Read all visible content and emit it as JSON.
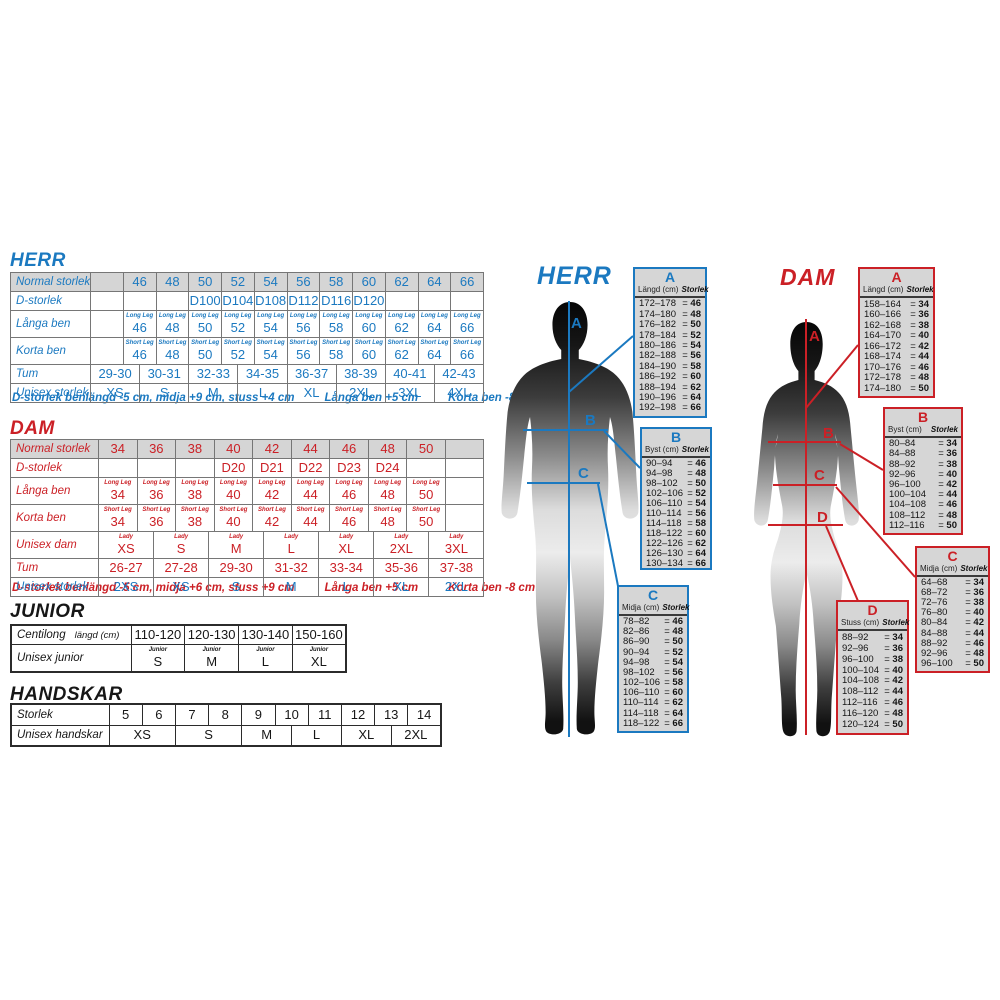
{
  "colors": {
    "blue": "#1b79c0",
    "red": "#cb2026",
    "black": "#161616",
    "header_bg": "#d5d5d5",
    "panel_bg": "#d6d6d6"
  },
  "sections": {
    "herr": {
      "title": "HERR",
      "rows": {
        "normal": {
          "label": "Normal storlek",
          "values": [
            "",
            "46",
            "48",
            "50",
            "52",
            "54",
            "56",
            "58",
            "60",
            "62",
            "64",
            "66"
          ]
        },
        "d": {
          "label": "D-storlek",
          "values": [
            "",
            "",
            "",
            "D100",
            "D104",
            "D108",
            "D112",
            "D116",
            "D120",
            "",
            "",
            ""
          ]
        },
        "langa": {
          "label": "Långa ben",
          "sub": "Long Leg",
          "values": [
            "",
            "46",
            "48",
            "50",
            "52",
            "54",
            "56",
            "58",
            "60",
            "62",
            "64",
            "66"
          ]
        },
        "korta": {
          "label": "Korta ben",
          "sub": "Short Leg",
          "values": [
            "",
            "46",
            "48",
            "50",
            "52",
            "54",
            "56",
            "58",
            "60",
            "62",
            "64",
            "66"
          ]
        },
        "tum": {
          "label": "Tum",
          "values": [
            "29-30",
            "30-31",
            "32-33",
            "34-35",
            "36-37",
            "38-39",
            "40-41",
            "42-43"
          ]
        },
        "unisex": {
          "label": "Unisex storlek",
          "values": [
            "XS",
            "S",
            "M",
            "L",
            "XL",
            "2XL",
            "3XL",
            "4XL"
          ]
        }
      },
      "footer": [
        "D-storlek benlängd -5 cm, midja +9 cm, stuss +4 cm",
        "Långa ben +5 cm",
        "Korta ben -8 cm"
      ]
    },
    "dam": {
      "title": "DAM",
      "rows": {
        "normal": {
          "label": "Normal storlek",
          "values": [
            "34",
            "36",
            "38",
            "40",
            "42",
            "44",
            "46",
            "48",
            "50",
            ""
          ]
        },
        "d": {
          "label": "D-storlek",
          "values": [
            "",
            "",
            "",
            "D20",
            "D21",
            "D22",
            "D23",
            "D24",
            "",
            ""
          ]
        },
        "langa": {
          "label": "Långa ben",
          "sub": "Long Leg",
          "values": [
            "34",
            "36",
            "38",
            "40",
            "42",
            "44",
            "46",
            "48",
            "50",
            ""
          ]
        },
        "korta": {
          "label": "Korta ben",
          "sub": "Short Leg",
          "values": [
            "34",
            "36",
            "38",
            "40",
            "42",
            "44",
            "46",
            "48",
            "50",
            ""
          ]
        },
        "unisex_dam": {
          "label": "Unisex dam",
          "sub": "Lady",
          "values": [
            "XS",
            "S",
            "M",
            "L",
            "XL",
            "2XL",
            "3XL"
          ]
        },
        "tum": {
          "label": "Tum",
          "values": [
            "26-27",
            "27-28",
            "29-30",
            "31-32",
            "33-34",
            "35-36",
            "37-38"
          ]
        },
        "unisex": {
          "label": "Unisex storlek",
          "values": [
            "2XS",
            "XS",
            "S",
            "M",
            "L",
            "XL",
            "2XL"
          ]
        }
      },
      "footer": [
        "D-storlek benlängd -5 cm, midja +6 cm, stuss +9 cm",
        "Långa ben +5 cm",
        "Korta ben -8 cm"
      ]
    },
    "junior": {
      "title": "JUNIOR",
      "rows": {
        "centilong": {
          "label": "Centilong",
          "label2": "längd (cm)",
          "values": [
            "110-120",
            "120-130",
            "130-140",
            "150-160"
          ]
        },
        "unisex": {
          "label": "Unisex junior",
          "sub": "Junior",
          "values": [
            "S",
            "M",
            "L",
            "XL"
          ]
        }
      }
    },
    "handskar": {
      "title": "HANDSKAR",
      "rows": {
        "storlek": {
          "label": "Storlek",
          "values": [
            "5",
            "6",
            "7",
            "8",
            "9",
            "10",
            "11",
            "12",
            "13",
            "14"
          ]
        },
        "unisex": {
          "label": "Unisex handskar",
          "values": [
            "XS",
            "S",
            "M",
            "L",
            "XL",
            "2XL"
          ]
        }
      }
    }
  },
  "figures": {
    "herr": {
      "title": "HERR",
      "markers": [
        "A",
        "B",
        "C"
      ]
    },
    "dam": {
      "title": "DAM",
      "markers": [
        "A",
        "B",
        "C",
        "D"
      ]
    }
  },
  "panels": {
    "herr": [
      {
        "letter": "A",
        "measure": "Längd (cm)",
        "size_label": "Storlek",
        "rows": [
          [
            "172–178",
            "46"
          ],
          [
            "174–180",
            "48"
          ],
          [
            "176–182",
            "50"
          ],
          [
            "178–184",
            "52"
          ],
          [
            "180–186",
            "54"
          ],
          [
            "182–188",
            "56"
          ],
          [
            "184–190",
            "58"
          ],
          [
            "186–192",
            "60"
          ],
          [
            "188–194",
            "62"
          ],
          [
            "190–196",
            "64"
          ],
          [
            "192–198",
            "66"
          ]
        ]
      },
      {
        "letter": "B",
        "measure": "Byst (cm)",
        "size_label": "Storlek",
        "rows": [
          [
            "90–94",
            "46"
          ],
          [
            "94–98",
            "48"
          ],
          [
            "98–102",
            "50"
          ],
          [
            "102–106",
            "52"
          ],
          [
            "106–110",
            "54"
          ],
          [
            "110–114",
            "56"
          ],
          [
            "114–118",
            "58"
          ],
          [
            "118–122",
            "60"
          ],
          [
            "122–126",
            "62"
          ],
          [
            "126–130",
            "64"
          ],
          [
            "130–134",
            "66"
          ]
        ]
      },
      {
        "letter": "C",
        "measure": "Midja (cm)",
        "size_label": "Storlek",
        "rows": [
          [
            "78–82",
            "46"
          ],
          [
            "82–86",
            "48"
          ],
          [
            "86–90",
            "50"
          ],
          [
            "90–94",
            "52"
          ],
          [
            "94–98",
            "54"
          ],
          [
            "98–102",
            "56"
          ],
          [
            "102–106",
            "58"
          ],
          [
            "106–110",
            "60"
          ],
          [
            "110–114",
            "62"
          ],
          [
            "114–118",
            "64"
          ],
          [
            "118–122",
            "66"
          ]
        ]
      }
    ],
    "dam": [
      {
        "letter": "A",
        "measure": "Längd (cm)",
        "size_label": "Storlek",
        "rows": [
          [
            "158–164",
            "34"
          ],
          [
            "160–166",
            "36"
          ],
          [
            "162–168",
            "38"
          ],
          [
            "164–170",
            "40"
          ],
          [
            "166–172",
            "42"
          ],
          [
            "168–174",
            "44"
          ],
          [
            "170–176",
            "46"
          ],
          [
            "172–178",
            "48"
          ],
          [
            "174–180",
            "50"
          ]
        ]
      },
      {
        "letter": "B",
        "measure": "Byst (cm)",
        "size_label": "Storlek",
        "rows": [
          [
            "80–84",
            "34"
          ],
          [
            "84–88",
            "36"
          ],
          [
            "88–92",
            "38"
          ],
          [
            "92–96",
            "40"
          ],
          [
            "96–100",
            "42"
          ],
          [
            "100–104",
            "44"
          ],
          [
            "104–108",
            "46"
          ],
          [
            "108–112",
            "48"
          ],
          [
            "112–116",
            "50"
          ]
        ]
      },
      {
        "letter": "C",
        "measure": "Midja (cm)",
        "size_label": "Storlek",
        "rows": [
          [
            "64–68",
            "34"
          ],
          [
            "68–72",
            "36"
          ],
          [
            "72–76",
            "38"
          ],
          [
            "76–80",
            "40"
          ],
          [
            "80–84",
            "42"
          ],
          [
            "84–88",
            "44"
          ],
          [
            "88–92",
            "46"
          ],
          [
            "92–96",
            "48"
          ],
          [
            "96–100",
            "50"
          ]
        ]
      },
      {
        "letter": "D",
        "measure": "Stuss (cm)",
        "size_label": "Storlek",
        "rows": [
          [
            "88–92",
            "34"
          ],
          [
            "92–96",
            "36"
          ],
          [
            "96–100",
            "38"
          ],
          [
            "100–104",
            "40"
          ],
          [
            "104–108",
            "42"
          ],
          [
            "108–112",
            "44"
          ],
          [
            "112–116",
            "46"
          ],
          [
            "116–120",
            "48"
          ],
          [
            "120–124",
            "50"
          ]
        ]
      }
    ]
  }
}
